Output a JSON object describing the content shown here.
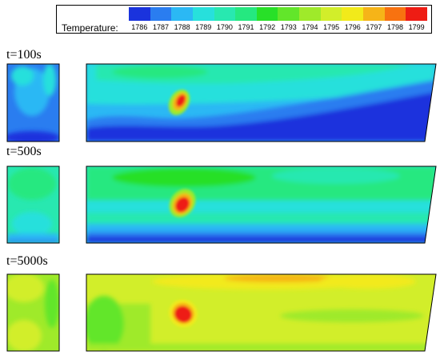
{
  "legend": {
    "title": "Temperature:",
    "values": [
      "1786",
      "1787",
      "1788",
      "1789",
      "1790",
      "1791",
      "1792",
      "1793",
      "1794",
      "1795",
      "1796",
      "1797",
      "1798",
      "1799"
    ],
    "colors": [
      "#1a33dd",
      "#2a7df0",
      "#2bb8f4",
      "#27e0dc",
      "#28e8b0",
      "#25e880",
      "#28e028",
      "#62e62a",
      "#9fea2a",
      "#d2ee2a",
      "#f2ea1a",
      "#f6b418",
      "#f87210",
      "#ee1c14"
    ]
  },
  "panels": [
    {
      "time_label": "t=100s"
    },
    {
      "time_label": "t=500s"
    },
    {
      "time_label": "t=5000s"
    }
  ]
}
